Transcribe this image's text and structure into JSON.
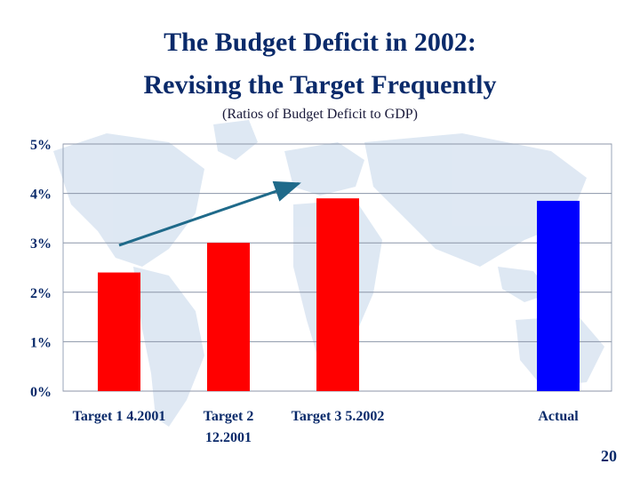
{
  "slide": {
    "title_line_1": "The Budget Deficit in 2002:",
    "title_line_2": "Revising the Target Frequently",
    "subtitle": "(Ratios of Budget Deficit to GDP)",
    "page_number": "20"
  },
  "colors": {
    "target_bar": "#ff0000",
    "actual_bar": "#0000ff",
    "arrow": "#1f6a8a",
    "text": "#0a2a6a",
    "map": "#dbe6f2"
  },
  "chart_data": {
    "type": "bar",
    "title": "The Budget Deficit in 2002: Revising the Target Frequently",
    "subtitle": "(Ratios of Budget Deficit to GDP)",
    "categories": [
      "Target 1 4.2001",
      "Target 2 12.2001",
      "Target 3 5.2002",
      "Actual"
    ],
    "category_lines": [
      [
        "Target 1 4.2001"
      ],
      [
        "Target 2",
        "12.2001"
      ],
      [
        "Target 3 5.2002"
      ],
      [
        "Actual"
      ]
    ],
    "values": [
      2.4,
      3.0,
      3.9,
      3.85
    ],
    "bar_colors": [
      "#ff0000",
      "#ff0000",
      "#ff0000",
      "#0000ff"
    ],
    "ylim": [
      0,
      5
    ],
    "yticks": [
      0,
      1,
      2,
      3,
      4,
      5
    ],
    "ytick_labels": [
      "0%",
      "1%",
      "2%",
      "3%",
      "4%",
      "5%"
    ],
    "grid": true,
    "annotation": {
      "type": "arrow",
      "from_category": 0,
      "to_category": 2,
      "from_value": 2.95,
      "to_value": 4.2
    }
  }
}
